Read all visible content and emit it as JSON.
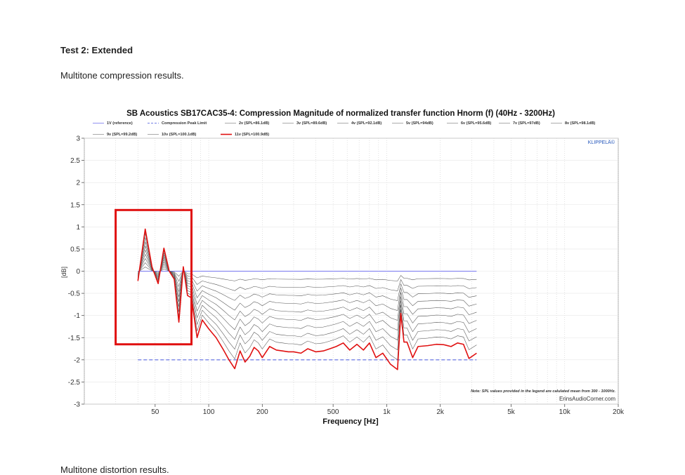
{
  "document": {
    "heading": "Test 2: Extended",
    "paragraph": "Multitone compression results.",
    "next_paragraph": "Multitone distortion results."
  },
  "chart_data": {
    "type": "line",
    "title": "SB Acoustics SB17CAC35-4: Compression Magnitude of normalized transfer function Hnorm (f) (40Hz - 3200Hz)",
    "xlabel": "Frequency [Hz]",
    "ylabel": "[dB]",
    "x_scale": "log",
    "xlim": [
      20,
      20000
    ],
    "ylim": [
      -3,
      3
    ],
    "x_ticks": [
      {
        "value": 50,
        "label": "50"
      },
      {
        "value": 100,
        "label": "100"
      },
      {
        "value": 200,
        "label": "200"
      },
      {
        "value": 500,
        "label": "500"
      },
      {
        "value": 1000,
        "label": "1k"
      },
      {
        "value": 2000,
        "label": "2k"
      },
      {
        "value": 5000,
        "label": "5k"
      },
      {
        "value": 10000,
        "label": "10k"
      },
      {
        "value": 20000,
        "label": "20k"
      }
    ],
    "y_ticks": [
      {
        "value": 3,
        "label": "3"
      },
      {
        "value": 2.5,
        "label": "2.5"
      },
      {
        "value": 2,
        "label": "2"
      },
      {
        "value": 1.5,
        "label": "1.5"
      },
      {
        "value": 1,
        "label": "1"
      },
      {
        "value": 0.5,
        "label": "0.5"
      },
      {
        "value": 0,
        "label": "0"
      },
      {
        "value": -0.5,
        "label": "-0.5"
      },
      {
        "value": -1,
        "label": "-1"
      },
      {
        "value": -1.5,
        "label": "-1.5"
      },
      {
        "value": -2,
        "label": "-2"
      },
      {
        "value": -2.5,
        "label": "-2.5"
      },
      {
        "value": -3,
        "label": "-3"
      }
    ],
    "grid": true,
    "legend_position": "top",
    "annotation_note": "Note: SPL values provided in the legend are calulated mean from 300 - 1000Hz.",
    "annotation_credit": "ErinsAudioCorner.com",
    "annotation_brand": "KLIPPELÄ©",
    "highlight_box": {
      "x_range": [
        30,
        80
      ],
      "y_range": [
        -1.65,
        1.38
      ],
      "color": "#e01010"
    },
    "colors": {
      "reference": "#7777ee",
      "limit": "#4455dd",
      "intermediate": "#555555",
      "final": "#e01010"
    },
    "reference": {
      "name": "1V (reference)",
      "x": [
        40,
        3200
      ],
      "y": [
        0,
        0
      ]
    },
    "limit": {
      "name": "Compression Peak Limit",
      "x": [
        40,
        3200
      ],
      "y": [
        -2,
        -2
      ]
    },
    "x": [
      40,
      44,
      48,
      52,
      56,
      60,
      64,
      68,
      72,
      76,
      80,
      86,
      92,
      100,
      110,
      120,
      130,
      140,
      150,
      160,
      170,
      180,
      190,
      200,
      220,
      240,
      260,
      280,
      300,
      330,
      360,
      400,
      440,
      480,
      520,
      570,
      620,
      680,
      740,
      800,
      870,
      950,
      1050,
      1150,
      1200,
      1250,
      1300,
      1400,
      1500,
      1700,
      1900,
      2100,
      2300,
      2500,
      2700,
      2900,
      3200
    ],
    "final_series": {
      "name": "11v (SPL=100.9dB)",
      "values": [
        -0.22,
        0.95,
        0.1,
        -0.28,
        0.52,
        0.0,
        -0.18,
        -1.15,
        0.1,
        -0.55,
        -0.6,
        -1.5,
        -1.1,
        -1.3,
        -1.5,
        -1.75,
        -2.0,
        -2.2,
        -1.8,
        -2.05,
        -1.92,
        -1.72,
        -1.8,
        -1.95,
        -1.7,
        -1.78,
        -1.8,
        -1.82,
        -1.82,
        -1.85,
        -1.75,
        -1.82,
        -1.8,
        -1.75,
        -1.7,
        -1.62,
        -1.78,
        -1.65,
        -1.78,
        -1.62,
        -1.95,
        -1.85,
        -2.1,
        -2.22,
        -0.95,
        -1.6,
        -1.6,
        -1.95,
        -1.7,
        -1.68,
        -1.65,
        -1.66,
        -1.7,
        -1.62,
        -1.65,
        -1.97,
        -1.85
      ]
    },
    "intermediate_series": [
      {
        "name": "2v (SPL=86.1dB)",
        "factor": 0.1
      },
      {
        "name": "3v (SPL=89.6dB)",
        "factor": 0.2
      },
      {
        "name": "4v (SPL=92.1dB)",
        "factor": 0.3
      },
      {
        "name": "5v (SPL=94dB)",
        "factor": 0.4
      },
      {
        "name": "6v (SPL=95.6dB)",
        "factor": 0.5
      },
      {
        "name": "7v (SPL=97dB)",
        "factor": 0.6
      },
      {
        "name": "8v (SPL=98.1dB)",
        "factor": 0.7
      },
      {
        "name": "9v (SPL=99.2dB)",
        "factor": 0.8
      },
      {
        "name": "10v (SPL=100.1dB)",
        "factor": 0.9
      }
    ]
  }
}
